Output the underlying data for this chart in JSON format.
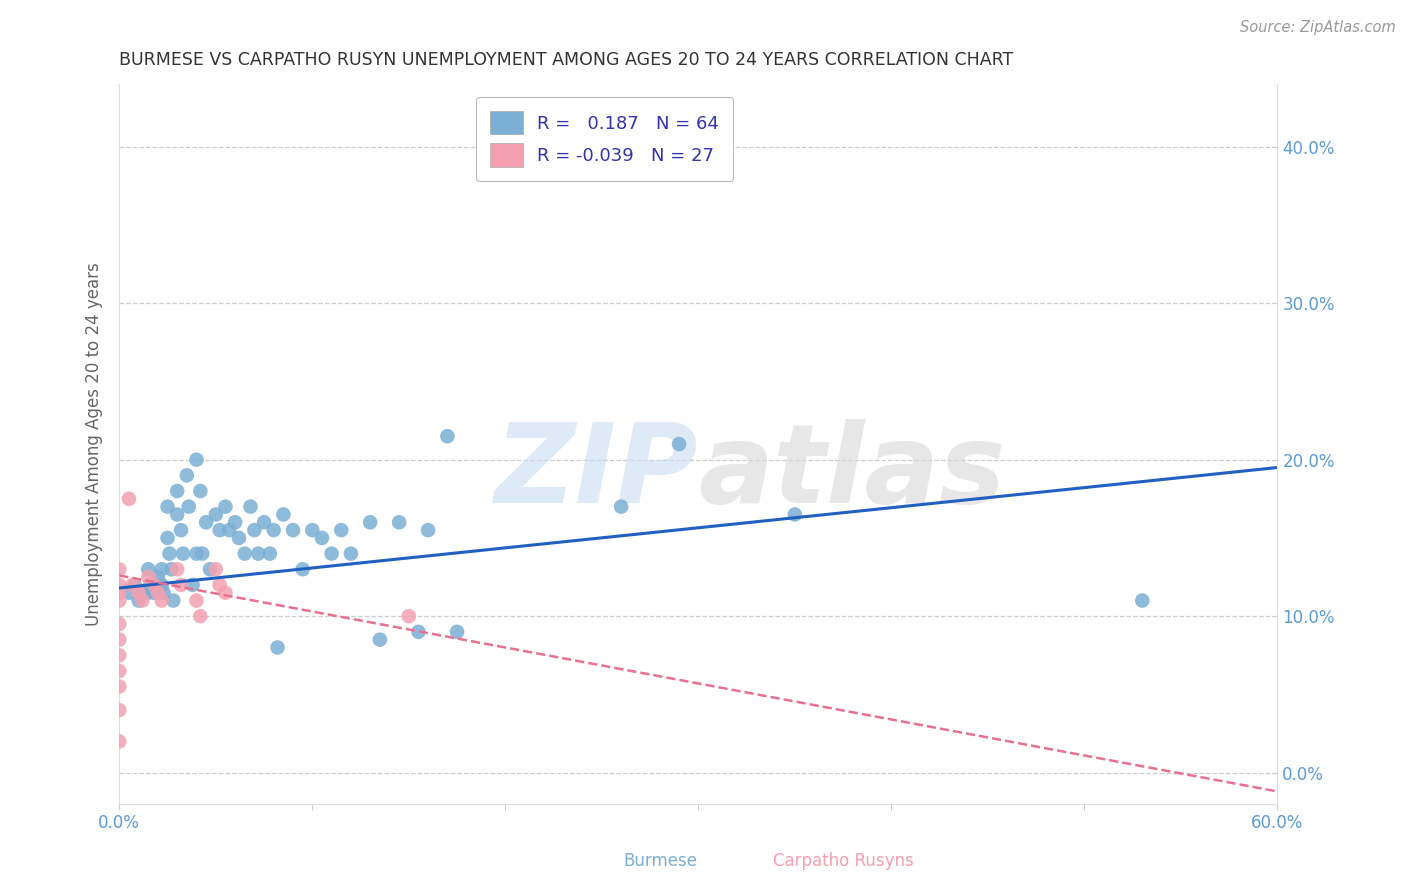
{
  "title": "BURMESE VS CARPATHO RUSYN UNEMPLOYMENT AMONG AGES 20 TO 24 YEARS CORRELATION CHART",
  "source": "Source: ZipAtlas.com",
  "ylabel": "Unemployment Among Ages 20 to 24 years",
  "xlim": [
    0.0,
    0.6
  ],
  "ylim": [
    -0.02,
    0.44
  ],
  "plot_ylim": [
    0.0,
    0.44
  ],
  "xticks": [
    0.0,
    0.1,
    0.2,
    0.3,
    0.4,
    0.5,
    0.6
  ],
  "xtick_labels_show": [
    "0.0%",
    "",
    "",
    "",
    "",
    "",
    "60.0%"
  ],
  "yticks": [
    0.0,
    0.1,
    0.2,
    0.3,
    0.4
  ],
  "ytick_labels": [
    "0.0%",
    "10.0%",
    "20.0%",
    "30.0%",
    "40.0%"
  ],
  "burmese_color": "#7BAFD4",
  "carpatho_color": "#F4A0B0",
  "burmese_line_color": "#2060C0",
  "carpatho_line_color": "#E87090",
  "legend_R_burmese": "0.187",
  "legend_N_burmese": "64",
  "legend_R_carpatho": "-0.039",
  "legend_N_carpatho": "27",
  "burmese_x": [
    0.005,
    0.008,
    0.01,
    0.012,
    0.015,
    0.015,
    0.016,
    0.018,
    0.02,
    0.02,
    0.022,
    0.022,
    0.023,
    0.025,
    0.025,
    0.026,
    0.027,
    0.028,
    0.03,
    0.03,
    0.032,
    0.033,
    0.035,
    0.036,
    0.038,
    0.04,
    0.04,
    0.042,
    0.043,
    0.045,
    0.047,
    0.05,
    0.052,
    0.055,
    0.057,
    0.06,
    0.062,
    0.065,
    0.068,
    0.07,
    0.072,
    0.075,
    0.078,
    0.08,
    0.082,
    0.085,
    0.09,
    0.095,
    0.1,
    0.105,
    0.11,
    0.115,
    0.12,
    0.13,
    0.135,
    0.145,
    0.155,
    0.16,
    0.17,
    0.175,
    0.26,
    0.29,
    0.35,
    0.53
  ],
  "burmese_y": [
    0.115,
    0.12,
    0.11,
    0.115,
    0.13,
    0.115,
    0.12,
    0.115,
    0.125,
    0.12,
    0.13,
    0.12,
    0.115,
    0.17,
    0.15,
    0.14,
    0.13,
    0.11,
    0.18,
    0.165,
    0.155,
    0.14,
    0.19,
    0.17,
    0.12,
    0.2,
    0.14,
    0.18,
    0.14,
    0.16,
    0.13,
    0.165,
    0.155,
    0.17,
    0.155,
    0.16,
    0.15,
    0.14,
    0.17,
    0.155,
    0.14,
    0.16,
    0.14,
    0.155,
    0.08,
    0.165,
    0.155,
    0.13,
    0.155,
    0.15,
    0.14,
    0.155,
    0.14,
    0.16,
    0.085,
    0.16,
    0.09,
    0.155,
    0.215,
    0.09,
    0.17,
    0.21,
    0.165,
    0.11
  ],
  "carpatho_x": [
    0.0,
    0.0,
    0.0,
    0.0,
    0.0,
    0.0,
    0.0,
    0.0,
    0.0,
    0.0,
    0.0,
    0.005,
    0.007,
    0.01,
    0.012,
    0.015,
    0.018,
    0.02,
    0.022,
    0.03,
    0.032,
    0.04,
    0.042,
    0.05,
    0.052,
    0.055,
    0.15
  ],
  "carpatho_y": [
    0.13,
    0.12,
    0.115,
    0.11,
    0.095,
    0.085,
    0.075,
    0.065,
    0.055,
    0.04,
    0.02,
    0.175,
    0.12,
    0.115,
    0.11,
    0.125,
    0.12,
    0.115,
    0.11,
    0.13,
    0.12,
    0.11,
    0.1,
    0.13,
    0.12,
    0.115,
    0.1
  ],
  "burmese_line_y_start": 0.118,
  "burmese_line_y_end": 0.195,
  "carpatho_line_y_start": 0.126,
  "carpatho_line_y_end": -0.012,
  "watermark_zip": "ZIP",
  "watermark_atlas": "atlas",
  "background_color": "#FFFFFF",
  "grid_color": "#CCCCCC",
  "title_color": "#333333",
  "tick_label_color": "#5B9BD5",
  "axis_label_color": "#666666",
  "legend_label_burmese": "Burmese",
  "legend_label_carpatho": "Carpatho Rusyns"
}
